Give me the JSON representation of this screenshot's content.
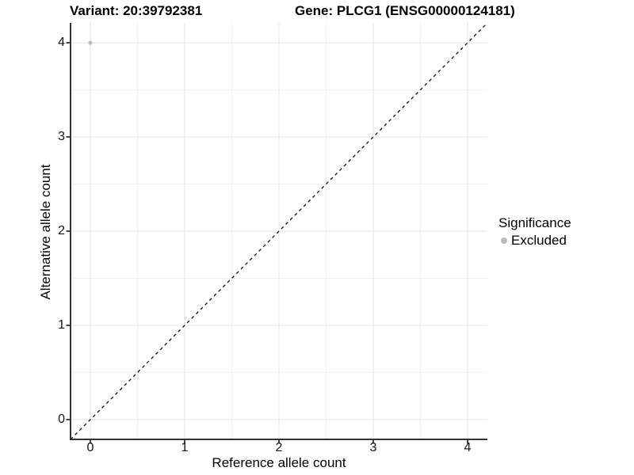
{
  "chart_data": {
    "type": "scatter",
    "title_left": "Variant: 20:39792381",
    "title_right": "Gene: PLCG1 (ENSG00000124181)",
    "xlabel": "Reference allele count",
    "ylabel": "Alternative allele count",
    "xlim": [
      -0.21,
      4.21
    ],
    "ylim": [
      -0.21,
      4.21
    ],
    "xticks": [
      "0",
      "1",
      "2",
      "3",
      "4"
    ],
    "yticks": [
      "0",
      "1",
      "2",
      "3",
      "4"
    ],
    "minor_ticks": [
      0.5,
      1.5,
      2.5,
      3.5
    ],
    "grid": true,
    "series": [
      {
        "name": "Excluded",
        "color": "#bdbdbd",
        "points": [
          [
            0,
            4
          ]
        ]
      }
    ],
    "reference_line": {
      "type": "identity",
      "style": "dashed",
      "color": "#000000"
    },
    "legend": {
      "title": "Significance",
      "position": "right",
      "items": [
        {
          "label": "Excluded",
          "color": "#bdbdbd"
        }
      ]
    }
  },
  "colors": {
    "background": "#ffffff",
    "grid_major": "#e4e4e4",
    "grid_minor": "#f1f1f1",
    "axis": "#333333",
    "point": "#bdbdbd",
    "dashed_line": "#000000"
  }
}
